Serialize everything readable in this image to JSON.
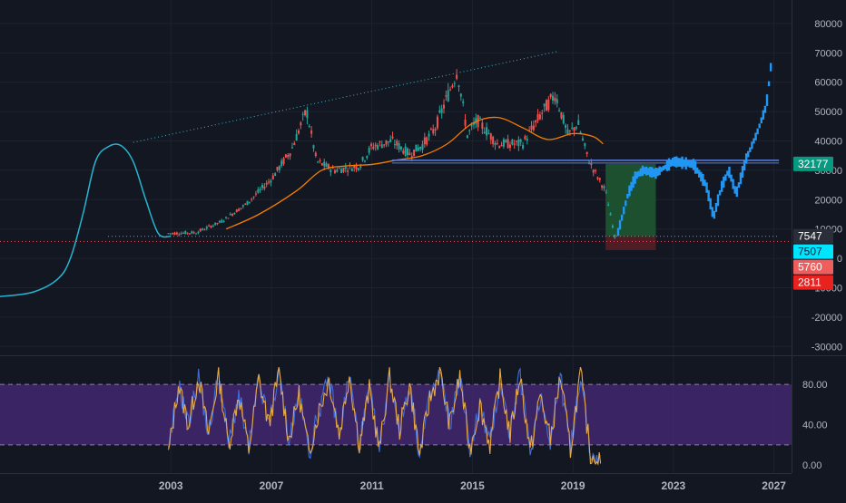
{
  "colors": {
    "background": "#131722",
    "grid": "#1e222d",
    "axis_text": "#b2b5be",
    "candle_up": "#26a69a",
    "candle_down": "#ef5350",
    "ma": "#f57c00",
    "curve": "#26b5d1",
    "projection": "#2196f3",
    "support": "#5b7fe0",
    "trendline": "#3fb6c4",
    "rsi_band": "#4a2a7a",
    "rsi_line": "#e6a945",
    "rsi_line2": "#3f6ed8",
    "target_zone": "#1f5a30",
    "stop_zone": "#5a1f24"
  },
  "chart_data": [
    {
      "type": "line",
      "title": "",
      "xlabel": "",
      "ylabel": "",
      "xlim": [
        1996.2,
        2027.7
      ],
      "ylim": [
        -33000,
        88000
      ],
      "x_ticks": [
        "2003",
        "2007",
        "2011",
        "2015",
        "2019",
        "2023",
        "2027"
      ],
      "y_ticks": [
        "80000",
        "70000",
        "60000",
        "50000",
        "40000",
        "30000",
        "20000",
        "10000",
        "0",
        "-10000",
        "-20000",
        "-30000"
      ],
      "grid": false,
      "series": [
        {
          "kind": "candles",
          "x": [
            2002.9,
            2004.0,
            2005.0,
            2006.0,
            2007.0,
            2007.8,
            2008.4,
            2008.8,
            2009.5,
            2010.5,
            2011.0,
            2011.8,
            2012.5,
            2013.0,
            2013.5,
            2014.0,
            2014.4,
            2014.8,
            2015.2,
            2016.0,
            2017.0,
            2017.8,
            2018.3,
            2018.8,
            2019.2,
            2019.6,
            2019.9,
            2020.3,
            2020.7
          ],
          "values": [
            8500,
            8800,
            12500,
            18500,
            27000,
            37000,
            50500,
            33000,
            30000,
            31500,
            38000,
            40000,
            35500,
            38500,
            44000,
            55000,
            64000,
            42000,
            47000,
            39000,
            39000,
            50000,
            56000,
            42000,
            46000,
            34000,
            29000,
            23000,
            6000
          ]
        },
        {
          "kind": "moving_average",
          "x": [
            2005.2,
            2006.5,
            2008.0,
            2009.0,
            2010.0,
            2011.0,
            2012.0,
            2013.0,
            2014.0,
            2015.0,
            2016.0,
            2017.0,
            2018.0,
            2019.0,
            2019.8,
            2020.2
          ],
          "values": [
            10000,
            15000,
            23000,
            30000,
            31500,
            32000,
            33500,
            35000,
            39000,
            46000,
            48000,
            44500,
            40500,
            42500,
            41500,
            39000
          ]
        },
        {
          "kind": "model_curve",
          "x": [
            1996.2,
            1997.5,
            1998.5,
            1999.0,
            1999.5,
            2000.0,
            2000.5,
            2001.0,
            2001.5,
            2002.0,
            2002.5,
            2003.0
          ],
          "values": [
            -13000,
            -11500,
            -7000,
            0,
            15000,
            33000,
            38000,
            38500,
            33000,
            20000,
            8500,
            7500
          ]
        },
        {
          "kind": "projection",
          "x": [
            2020.8,
            2021.2,
            2021.5,
            2021.8,
            2022.3,
            2023.0,
            2023.8,
            2024.3,
            2024.6,
            2024.9,
            2025.2,
            2025.5,
            2025.9,
            2026.3,
            2026.7,
            2026.9
          ],
          "values": [
            9000,
            22000,
            28000,
            30000,
            29000,
            33000,
            32000,
            25000,
            14000,
            24000,
            30000,
            22000,
            34000,
            42000,
            52000,
            67000
          ]
        },
        {
          "kind": "support_line",
          "x": [
            2011.8,
            2027.2
          ],
          "values": [
            33400,
            33400
          ]
        },
        {
          "kind": "trendline",
          "x": [
            2001.5,
            2018.4
          ],
          "values": [
            39500,
            70500
          ]
        },
        {
          "kind": "dotted_level",
          "x": [
            1996.2,
            2027.7
          ],
          "values": [
            5760,
            5760
          ]
        },
        {
          "kind": "dotted_level",
          "x": [
            2000.5,
            2027.2
          ],
          "values": [
            7507,
            7507
          ]
        },
        {
          "kind": "target_zone",
          "x": [
            2020.3,
            2022.3
          ],
          "values": [
            7547,
            32177
          ]
        },
        {
          "kind": "stop_zone",
          "x": [
            2020.3,
            2022.3
          ],
          "values": [
            2811,
            7547
          ]
        }
      ],
      "price_labels": [
        {
          "text": "32177",
          "value": 32177,
          "bg": "#089981",
          "fg": "#ffffff"
        },
        {
          "text": "7547",
          "value": 7547,
          "bg": "#2a2e39",
          "fg": "#ffffff"
        },
        {
          "text": "7507",
          "value": 7507,
          "bg": "#00e5ff",
          "fg": "#0b1a2a"
        },
        {
          "text": "5760",
          "value": 5760,
          "bg": "#f05d5d",
          "fg": "#ffffff"
        },
        {
          "text": "2811",
          "value": 2811,
          "bg": "#e8221f",
          "fg": "#ffffff"
        }
      ]
    },
    {
      "type": "line",
      "title": "",
      "ylim": [
        -8,
        108
      ],
      "y_ticks": [
        "80.00",
        "40.00",
        "0.00"
      ],
      "band": [
        20,
        80
      ],
      "series": [
        {
          "name": "",
          "x": [
            2002.9,
            2003.3,
            2003.7,
            2004.1,
            2004.5,
            2004.9,
            2005.3,
            2005.7,
            2006.1,
            2006.5,
            2006.9,
            2007.3,
            2007.7,
            2008.1,
            2008.5,
            2008.9,
            2009.3,
            2009.7,
            2010.1,
            2010.5,
            2010.9,
            2011.3,
            2011.7,
            2012.1,
            2012.5,
            2012.9,
            2013.3,
            2013.7,
            2014.1,
            2014.5,
            2014.9,
            2015.3,
            2015.7,
            2016.1,
            2016.5,
            2016.9,
            2017.3,
            2017.7,
            2018.1,
            2018.5,
            2018.9,
            2019.3,
            2019.7,
            2020.1
          ],
          "values": [
            10,
            80,
            40,
            88,
            30,
            90,
            20,
            70,
            15,
            85,
            40,
            92,
            25,
            70,
            12,
            55,
            85,
            30,
            90,
            20,
            75,
            15,
            88,
            35,
            80,
            10,
            65,
            92,
            40,
            88,
            15,
            60,
            20,
            85,
            30,
            90,
            12,
            70,
            25,
            88,
            15,
            92,
            10,
            3
          ]
        }
      ]
    }
  ]
}
